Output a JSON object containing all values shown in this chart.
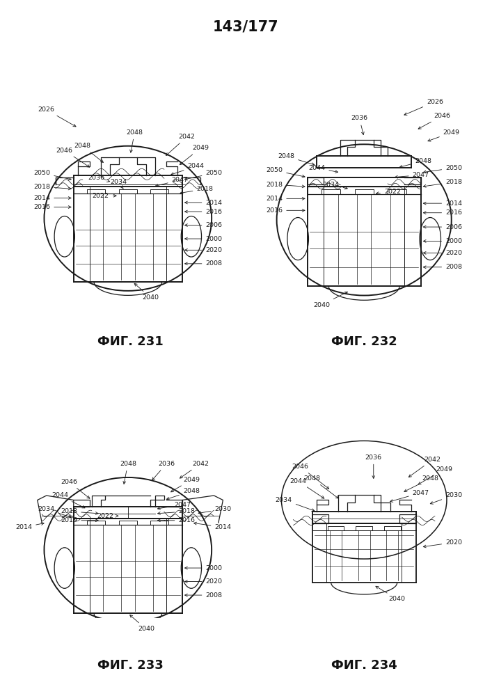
{
  "title": "143/177",
  "title_fontsize": 15,
  "background_color": "#ffffff",
  "line_color": "#1a1a1a",
  "fig_labels": [
    "ФИГ. 231",
    "ФИГ. 232",
    "ФИГ. 233",
    "ФИГ. 234"
  ],
  "fig_label_fontsize": 13,
  "ann_fs": 6.8
}
